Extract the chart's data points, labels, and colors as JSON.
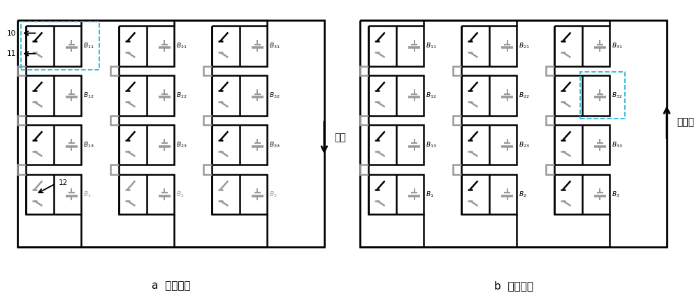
{
  "title_a": "a  放电模式",
  "title_b": "b  充电模式",
  "label_load": "负载",
  "label_charge": "充电桩",
  "bg_color": "#ffffff",
  "line_color": "#000000",
  "gray_color": "#999999",
  "dashed_color": "#29b6d4",
  "figsize": [
    10.0,
    4.4
  ],
  "dpi": 100,
  "lw": 1.8
}
